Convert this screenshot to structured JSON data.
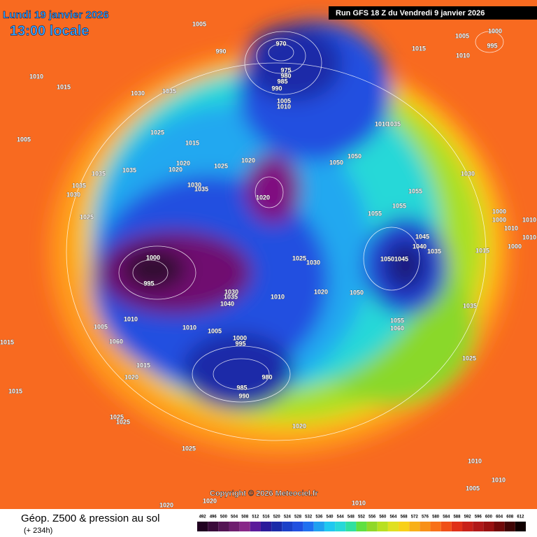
{
  "header": {
    "date": "Lundi 19 janvier 2026",
    "time": "13:00 locale",
    "run": "Run GFS 18 Z du Vendredi 9 janvier 2026"
  },
  "isobar_labels": [
    "1005",
    "990",
    "970",
    "975",
    "980",
    "985",
    "990",
    "1005",
    "1010",
    "1010",
    "1015",
    "1030",
    "1035",
    "1005",
    "1025",
    "1015",
    "1020",
    "1020",
    "1025",
    "1020",
    "1035",
    "1035",
    "1035",
    "1030",
    "1025",
    "1030",
    "1035",
    "1020",
    "1050",
    "1050",
    "1010",
    "1035",
    "1015",
    "1005",
    "1000",
    "995",
    "1010",
    "1030",
    "1055",
    "1055",
    "1055",
    "1000",
    "1000",
    "1010",
    "1010",
    "1010",
    "1000",
    "1015",
    "1045",
    "1040",
    "1035",
    "1050",
    "1045",
    "1000",
    "995",
    "1025",
    "1030",
    "1010",
    "1005",
    "1020",
    "1050",
    "1010",
    "1035",
    "1040",
    "1030",
    "1010",
    "1005",
    "1000",
    "995",
    "1060",
    "1015",
    "1015",
    "1020",
    "1055",
    "1060",
    "1035",
    "1025",
    "980",
    "985",
    "990",
    "1015",
    "1025",
    "1025",
    "1020",
    "1025",
    "1010",
    "1010",
    "1005",
    "1020",
    "1010",
    "1020"
  ],
  "footer": {
    "title": "Géop. Z500 & pression au sol",
    "lead": "(+ 234h)",
    "copyright": "Copyright © 2026 Meteociel.fr"
  },
  "legend": {
    "values": [
      "492",
      "496",
      "500",
      "504",
      "508",
      "512",
      "516",
      "520",
      "524",
      "528",
      "532",
      "536",
      "540",
      "544",
      "548",
      "552",
      "556",
      "560",
      "564",
      "568",
      "572",
      "576",
      "580",
      "584",
      "588",
      "592",
      "596",
      "600",
      "604",
      "608",
      "612"
    ]
  }
}
